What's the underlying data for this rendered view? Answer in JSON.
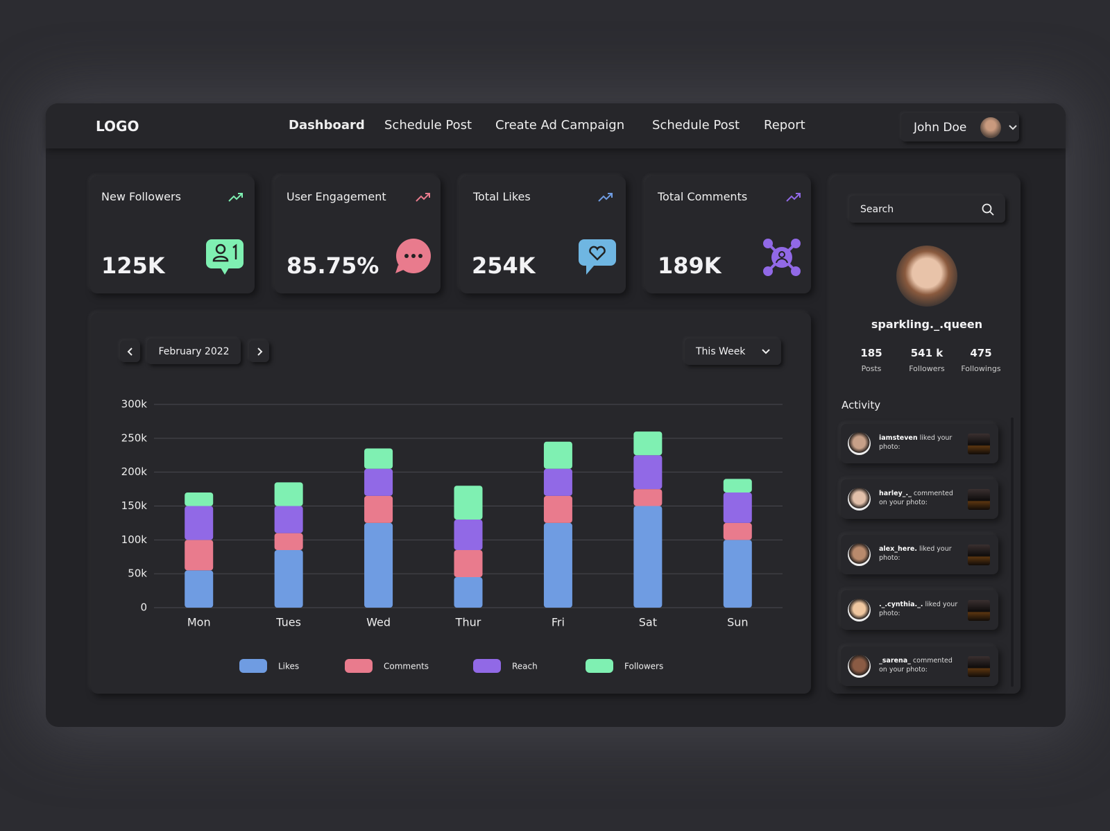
{
  "header": {
    "logo": "LOGO",
    "nav": [
      "Dashboard",
      "Schedule Post",
      "Create Ad Campaign",
      "Schedule Post",
      "Report"
    ],
    "user": "John Doe"
  },
  "stats": [
    {
      "title": "New Followers",
      "value": "125K"
    },
    {
      "title": "User Engagement",
      "value": "85.75%"
    },
    {
      "title": "Total Likes",
      "value": "254K"
    },
    {
      "title": "Total Comments",
      "value": "189K"
    }
  ],
  "controls": {
    "month": "February 2022",
    "range": "This Week"
  },
  "chart_data": {
    "type": "stacked_bar",
    "categories": [
      "Mon",
      "Tues",
      "Wed",
      "Thur",
      "Fri",
      "Sat",
      "Sun"
    ],
    "series": [
      {
        "name": "Likes",
        "color": "#6f9ce2",
        "values": [
          55000,
          85000,
          125000,
          45000,
          125000,
          150000,
          100000
        ]
      },
      {
        "name": "Comments",
        "color": "#e97b8d",
        "values": [
          45000,
          25000,
          40000,
          40000,
          40000,
          25000,
          25000
        ]
      },
      {
        "name": "Reach",
        "color": "#9169e6",
        "values": [
          50000,
          40000,
          40000,
          45000,
          40000,
          50000,
          45000
        ]
      },
      {
        "name": "Followers",
        "color": "#7ff0b2",
        "values": [
          20000,
          35000,
          30000,
          50000,
          40000,
          35000,
          20000
        ]
      }
    ],
    "ylim": [
      0,
      300000
    ],
    "yticks": [
      0,
      {
        "value": 50000,
        "label": "50k"
      },
      {
        "value": 100000,
        "label": "100k"
      },
      {
        "value": 150000,
        "label": "150k"
      },
      {
        "value": 200000,
        "label": "200k"
      },
      {
        "value": 250000,
        "label": "250k"
      },
      {
        "value": 300000,
        "label": "300k"
      }
    ],
    "grid": true
  },
  "sidebar": {
    "search": "Search",
    "profile": {
      "name": "sparkling._.queen",
      "stats": [
        {
          "value": "185",
          "label": "Posts"
        },
        {
          "value": "541 k",
          "label": "Followers"
        },
        {
          "value": "475",
          "label": "Followings"
        }
      ]
    },
    "activity_title": "Activity",
    "activity": [
      {
        "user": "iamsteven",
        "action": "liked your photo:"
      },
      {
        "user": "harley_._",
        "action": "commented on your photo:"
      },
      {
        "user": "alex_here.",
        "action": "liked your photo:"
      },
      {
        "user": "._.cynthia._.",
        "action": "liked your photo:"
      },
      {
        "user": "_sarena_",
        "action": "commented on your photo:"
      }
    ]
  }
}
